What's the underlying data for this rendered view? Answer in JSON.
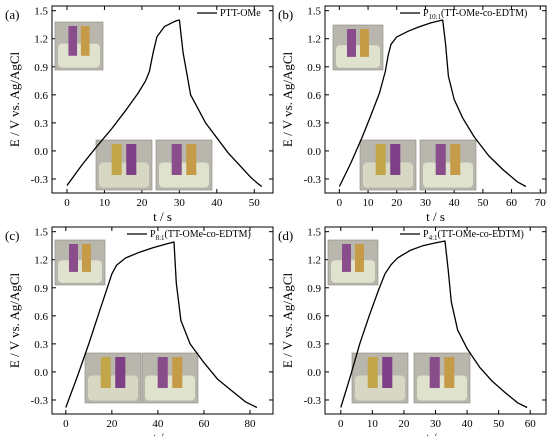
{
  "figure": {
    "y_axis_label": "E / V vs. Ag/AgCl",
    "x_axis_label": "t / s"
  },
  "chart_data": [
    {
      "type": "line",
      "panel_label": "(a)",
      "legend": [
        {
          "text": "PTT-OMe"
        }
      ],
      "xlim": [
        -4,
        55
      ],
      "ylim": [
        -0.45,
        1.55
      ],
      "xticks": [
        0,
        10,
        20,
        30,
        40,
        50
      ],
      "yticks": [
        -0.3,
        0.0,
        0.3,
        0.6,
        0.9,
        1.2,
        1.5
      ],
      "ytick_labels": [
        "-0.3",
        "0.0",
        "0.3",
        "0.6",
        "0.9",
        "1.2",
        "1.5"
      ],
      "xlabel": "t / s",
      "ylabel": "E / V vs. Ag/AgCl",
      "series": [
        {
          "x": [
            0,
            4,
            8,
            12,
            16,
            19,
            21,
            22,
            23,
            24,
            26,
            28,
            29,
            30,
            31,
            32,
            33,
            35,
            37,
            40,
            43,
            46,
            49,
            51,
            52
          ],
          "y": [
            -0.37,
            -0.15,
            0.05,
            0.24,
            0.45,
            0.62,
            0.75,
            0.85,
            1.05,
            1.22,
            1.33,
            1.37,
            1.39,
            1.4,
            1.05,
            0.83,
            0.6,
            0.45,
            0.3,
            0.14,
            -0.02,
            -0.15,
            -0.28,
            -0.35,
            -0.38
          ]
        }
      ]
    },
    {
      "type": "line",
      "panel_label": "(b)",
      "legend": [
        {
          "text": "P",
          "sub": "10:1",
          "rest": "(TT-OMe-co-EDTM)"
        }
      ],
      "xlim": [
        -5,
        72
      ],
      "ylim": [
        -0.45,
        1.55
      ],
      "xticks": [
        0,
        10,
        20,
        30,
        40,
        50,
        60,
        70
      ],
      "yticks": [
        -0.3,
        0.0,
        0.3,
        0.6,
        0.9,
        1.2,
        1.5
      ],
      "ytick_labels": [
        "-0.3",
        "0.0",
        "0.3",
        "0.6",
        "0.9",
        "1.2",
        "1.5"
      ],
      "xlabel": "t / s",
      "ylabel": "E / V vs. Ag/AgCl",
      "series": [
        {
          "x": [
            0,
            4,
            8,
            11,
            14,
            16,
            17,
            18,
            20,
            24,
            28,
            32,
            36,
            37,
            38,
            40,
            43,
            47,
            52,
            57,
            62,
            65
          ],
          "y": [
            -0.38,
            -0.13,
            0.15,
            0.38,
            0.62,
            0.85,
            1.02,
            1.14,
            1.22,
            1.28,
            1.33,
            1.37,
            1.4,
            1.15,
            0.8,
            0.55,
            0.35,
            0.15,
            -0.05,
            -0.2,
            -0.33,
            -0.38
          ]
        }
      ]
    },
    {
      "type": "line",
      "panel_label": "(c)",
      "legend": [
        {
          "text": "P",
          "sub": "8:1",
          "rest": "(TT-OMe-co-EDTM)"
        }
      ],
      "xlim": [
        -6,
        90
      ],
      "ylim": [
        -0.45,
        1.55
      ],
      "xticks": [
        0,
        20,
        40,
        60,
        80
      ],
      "yticks": [
        -0.3,
        0.0,
        0.3,
        0.6,
        0.9,
        1.2,
        1.5
      ],
      "ytick_labels": [
        "-0.3",
        "0.0",
        "0.3",
        "0.6",
        "0.9",
        "1.2",
        "1.5"
      ],
      "xlabel": "t / s",
      "ylabel": "E / V vs. Ag/AgCl",
      "series": [
        {
          "x": [
            0,
            5,
            10,
            14,
            18,
            20,
            22,
            26,
            32,
            38,
            44,
            47,
            48,
            50,
            54,
            60,
            66,
            72,
            78,
            83
          ],
          "y": [
            -0.38,
            -0.05,
            0.3,
            0.6,
            0.9,
            1.05,
            1.14,
            1.22,
            1.28,
            1.33,
            1.37,
            1.39,
            0.95,
            0.55,
            0.3,
            0.1,
            -0.08,
            -0.2,
            -0.32,
            -0.38
          ]
        }
      ]
    },
    {
      "type": "line",
      "panel_label": "(d)",
      "legend": [
        {
          "text": "P",
          "sub": "4:1",
          "rest": "(TT-OMe-co-EDTM)"
        }
      ],
      "xlim": [
        -5,
        65
      ],
      "ylim": [
        -0.45,
        1.55
      ],
      "xticks": [
        0,
        10,
        20,
        30,
        40,
        50,
        60
      ],
      "yticks": [
        -0.3,
        0.0,
        0.3,
        0.6,
        0.9,
        1.2,
        1.5
      ],
      "ytick_labels": [
        "-0.3",
        "0.0",
        "0.3",
        "0.6",
        "0.9",
        "1.2",
        "1.5"
      ],
      "xlabel": "t / s",
      "ylabel": "E / V vs. Ag/AgCl",
      "series": [
        {
          "x": [
            0,
            3,
            6,
            9,
            12,
            14,
            16,
            18,
            22,
            26,
            30,
            33,
            34,
            35,
            37,
            40,
            44,
            48,
            52,
            56,
            59
          ],
          "y": [
            -0.38,
            -0.05,
            0.3,
            0.6,
            0.88,
            1.05,
            1.15,
            1.22,
            1.3,
            1.35,
            1.38,
            1.4,
            1.1,
            0.75,
            0.45,
            0.25,
            0.05,
            -0.1,
            -0.22,
            -0.33,
            -0.38
          ]
        }
      ]
    }
  ]
}
